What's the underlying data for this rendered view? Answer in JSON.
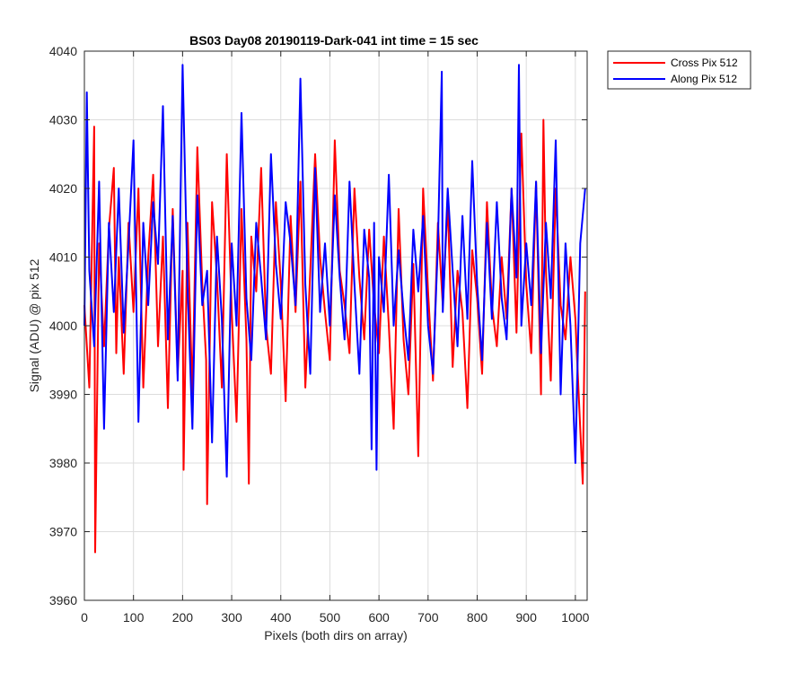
{
  "chart_data": {
    "type": "line",
    "title": "BS03 Day08 20190119-Dark-041 int time = 15 sec",
    "xlabel": "Pixels (both dirs on array)",
    "ylabel": "Signal (ADU) @ pix 512",
    "xlim": [
      0,
      1024
    ],
    "ylim": [
      3960,
      4040
    ],
    "xticks": [
      0,
      100,
      200,
      300,
      400,
      500,
      600,
      700,
      800,
      900,
      1000
    ],
    "yticks": [
      3960,
      3970,
      3980,
      3990,
      4000,
      4010,
      4020,
      4030,
      4040
    ],
    "grid": true,
    "legend_position": "outside-top-right",
    "series": [
      {
        "name": "Cross Pix 512",
        "color": "#ff0000",
        "x": [
          0,
          10,
          20,
          22,
          30,
          40,
          50,
          60,
          65,
          70,
          80,
          90,
          100,
          110,
          120,
          130,
          140,
          150,
          160,
          170,
          180,
          190,
          200,
          202,
          210,
          220,
          230,
          240,
          248,
          250,
          260,
          270,
          280,
          290,
          300,
          310,
          320,
          330,
          335,
          340,
          350,
          360,
          370,
          380,
          390,
          400,
          410,
          420,
          430,
          440,
          450,
          460,
          470,
          480,
          490,
          500,
          510,
          520,
          530,
          540,
          550,
          560,
          570,
          580,
          590,
          600,
          610,
          620,
          630,
          640,
          650,
          660,
          670,
          680,
          690,
          700,
          710,
          720,
          730,
          740,
          750,
          760,
          770,
          780,
          790,
          800,
          810,
          820,
          830,
          840,
          850,
          860,
          870,
          880,
          890,
          900,
          910,
          920,
          930,
          935,
          940,
          950,
          960,
          970,
          980,
          990,
          1000,
          1010,
          1015,
          1020
        ],
        "y": [
          4003,
          3991,
          4029,
          3967,
          4012,
          3997,
          4014,
          4023,
          3996,
          4010,
          3993,
          4015,
          4002,
          4020,
          3991,
          4010,
          4022,
          3997,
          4013,
          3988,
          4017,
          3993,
          4008,
          3979,
          4015,
          3990,
          4026,
          4006,
          3995,
          3974,
          4018,
          4007,
          3991,
          4025,
          4002,
          3986,
          4017,
          3998,
          3977,
          4013,
          4005,
          4023,
          4000,
          3993,
          4018,
          4006,
          3989,
          4016,
          4002,
          4021,
          3991,
          4008,
          4025,
          4010,
          4002,
          3995,
          4027,
          4008,
          4003,
          3996,
          4020,
          4007,
          3998,
          4014,
          4003,
          3996,
          4013,
          4000,
          3985,
          4017,
          3998,
          3990,
          4009,
          3981,
          4020,
          4005,
          3992,
          4015,
          4003,
          4018,
          3994,
          4008,
          4002,
          3988,
          4011,
          4004,
          3993,
          4018,
          4003,
          3997,
          4010,
          4001,
          4020,
          3999,
          4028,
          4006,
          3996,
          4021,
          3990,
          4030,
          4008,
          3992,
          4020,
          4003,
          3998,
          4010,
          4001,
          3985,
          3977,
          4005
        ]
      },
      {
        "name": "Along Pix 512",
        "color": "#0000ff",
        "x": [
          0,
          5,
          10,
          20,
          30,
          40,
          50,
          60,
          70,
          80,
          90,
          100,
          110,
          120,
          130,
          140,
          150,
          160,
          170,
          180,
          190,
          200,
          210,
          220,
          230,
          240,
          250,
          260,
          270,
          280,
          290,
          300,
          310,
          320,
          330,
          340,
          350,
          360,
          370,
          380,
          390,
          400,
          410,
          420,
          430,
          440,
          450,
          460,
          470,
          480,
          490,
          500,
          510,
          520,
          530,
          540,
          550,
          560,
          570,
          580,
          585,
          590,
          595,
          600,
          610,
          620,
          630,
          640,
          650,
          660,
          670,
          680,
          690,
          700,
          710,
          720,
          728,
          730,
          740,
          750,
          760,
          770,
          780,
          790,
          800,
          810,
          820,
          830,
          840,
          850,
          860,
          870,
          880,
          885,
          890,
          900,
          910,
          920,
          930,
          940,
          950,
          960,
          970,
          980,
          990,
          1000,
          1010,
          1020
        ],
        "y": [
          4000,
          4034,
          4008,
          3997,
          4021,
          3985,
          4015,
          4002,
          4020,
          3999,
          4012,
          4027,
          3986,
          4015,
          4003,
          4018,
          4009,
          4032,
          3998,
          4016,
          3992,
          4038,
          4006,
          3985,
          4019,
          4003,
          4008,
          3983,
          4013,
          4001,
          3978,
          4012,
          4000,
          4031,
          4004,
          3995,
          4015,
          4007,
          3998,
          4025,
          4009,
          4001,
          4018,
          4012,
          4003,
          4036,
          4006,
          3993,
          4023,
          4002,
          4012,
          4000,
          4019,
          4007,
          3998,
          4021,
          4006,
          3993,
          4014,
          4007,
          3982,
          4015,
          3979,
          4010,
          4002,
          4022,
          4000,
          4011,
          4002,
          3995,
          4014,
          4005,
          4016,
          4000,
          3993,
          4012,
          4037,
          4002,
          4020,
          4008,
          3997,
          4016,
          4001,
          4024,
          4006,
          3995,
          4015,
          4001,
          4018,
          4004,
          3998,
          4020,
          4007,
          4038,
          4000,
          4012,
          4003,
          4021,
          3996,
          4015,
          4004,
          4027,
          3990,
          4012,
          4000,
          3980,
          4012,
          4020
        ]
      }
    ]
  }
}
